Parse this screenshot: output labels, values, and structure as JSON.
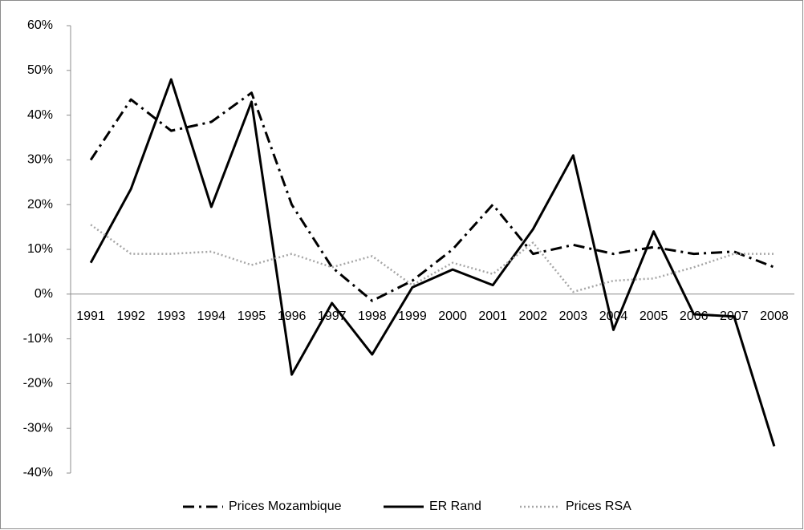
{
  "chart_data": {
    "type": "line",
    "categories": [
      "1991",
      "1992",
      "1993",
      "1994",
      "1995",
      "1996",
      "1997",
      "1998",
      "1999",
      "2000",
      "2001",
      "2002",
      "2003",
      "2004",
      "2005",
      "2006",
      "2007",
      "2008"
    ],
    "series": [
      {
        "name": "Prices Mozambique",
        "color": "#000000",
        "style": "dashdot",
        "values": [
          30,
          43.5,
          36.5,
          38.5,
          45,
          20,
          6,
          -1.5,
          3,
          10,
          20,
          9,
          11,
          9,
          10.5,
          9,
          9.5,
          6
        ]
      },
      {
        "name": "ER Rand",
        "color": "#000000",
        "style": "solid",
        "values": [
          7,
          23.5,
          48,
          19.5,
          43,
          -18,
          -2,
          -13.5,
          1.5,
          5.5,
          2,
          14.5,
          31,
          -8,
          14,
          -4.5,
          -5,
          -34
        ]
      },
      {
        "name": "Prices RSA",
        "color": "#a6a6a6",
        "style": "dotted",
        "values": [
          15.5,
          9,
          9,
          9.5,
          6.5,
          9,
          6,
          8.5,
          2,
          7,
          4.5,
          11.5,
          0.5,
          3,
          3.5,
          6,
          9,
          9
        ]
      }
    ],
    "ylim": [
      -40,
      60
    ],
    "yticks": [
      {
        "value": -40,
        "label": "-40%"
      },
      {
        "value": -30,
        "label": "-30%"
      },
      {
        "value": -20,
        "label": "-20%"
      },
      {
        "value": -10,
        "label": "-10%"
      },
      {
        "value": 0,
        "label": "0%"
      },
      {
        "value": 10,
        "label": "10%"
      },
      {
        "value": 20,
        "label": "20%"
      },
      {
        "value": 30,
        "label": "30%"
      },
      {
        "value": 40,
        "label": "40%"
      },
      {
        "value": 50,
        "label": "50%"
      },
      {
        "value": 60,
        "label": "60%"
      }
    ],
    "legend": "bottom"
  }
}
